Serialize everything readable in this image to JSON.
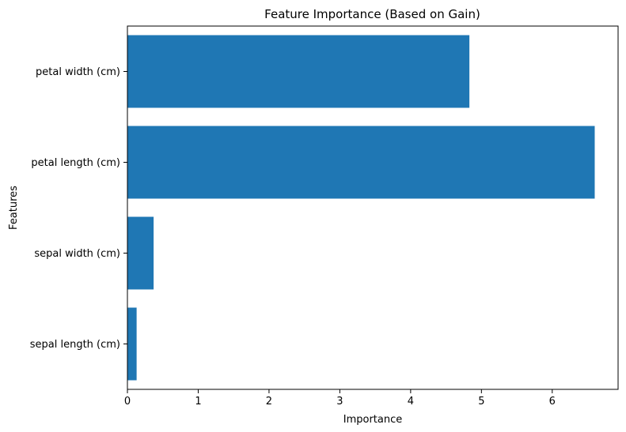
{
  "chart_data": {
    "type": "bar",
    "orientation": "horizontal",
    "title": "Feature Importance (Based on Gain)",
    "xlabel": "Importance",
    "ylabel": "Features",
    "categories": [
      "sepal length (cm)",
      "sepal width (cm)",
      "petal length (cm)",
      "petal width (cm)"
    ],
    "values": [
      0.13,
      0.37,
      6.6,
      4.83
    ],
    "xlim": [
      0,
      6.93
    ],
    "xticks": [
      0,
      1,
      2,
      3,
      4,
      5,
      6
    ],
    "bar_color": "#1f77b4",
    "grid": false,
    "legend": "none"
  }
}
